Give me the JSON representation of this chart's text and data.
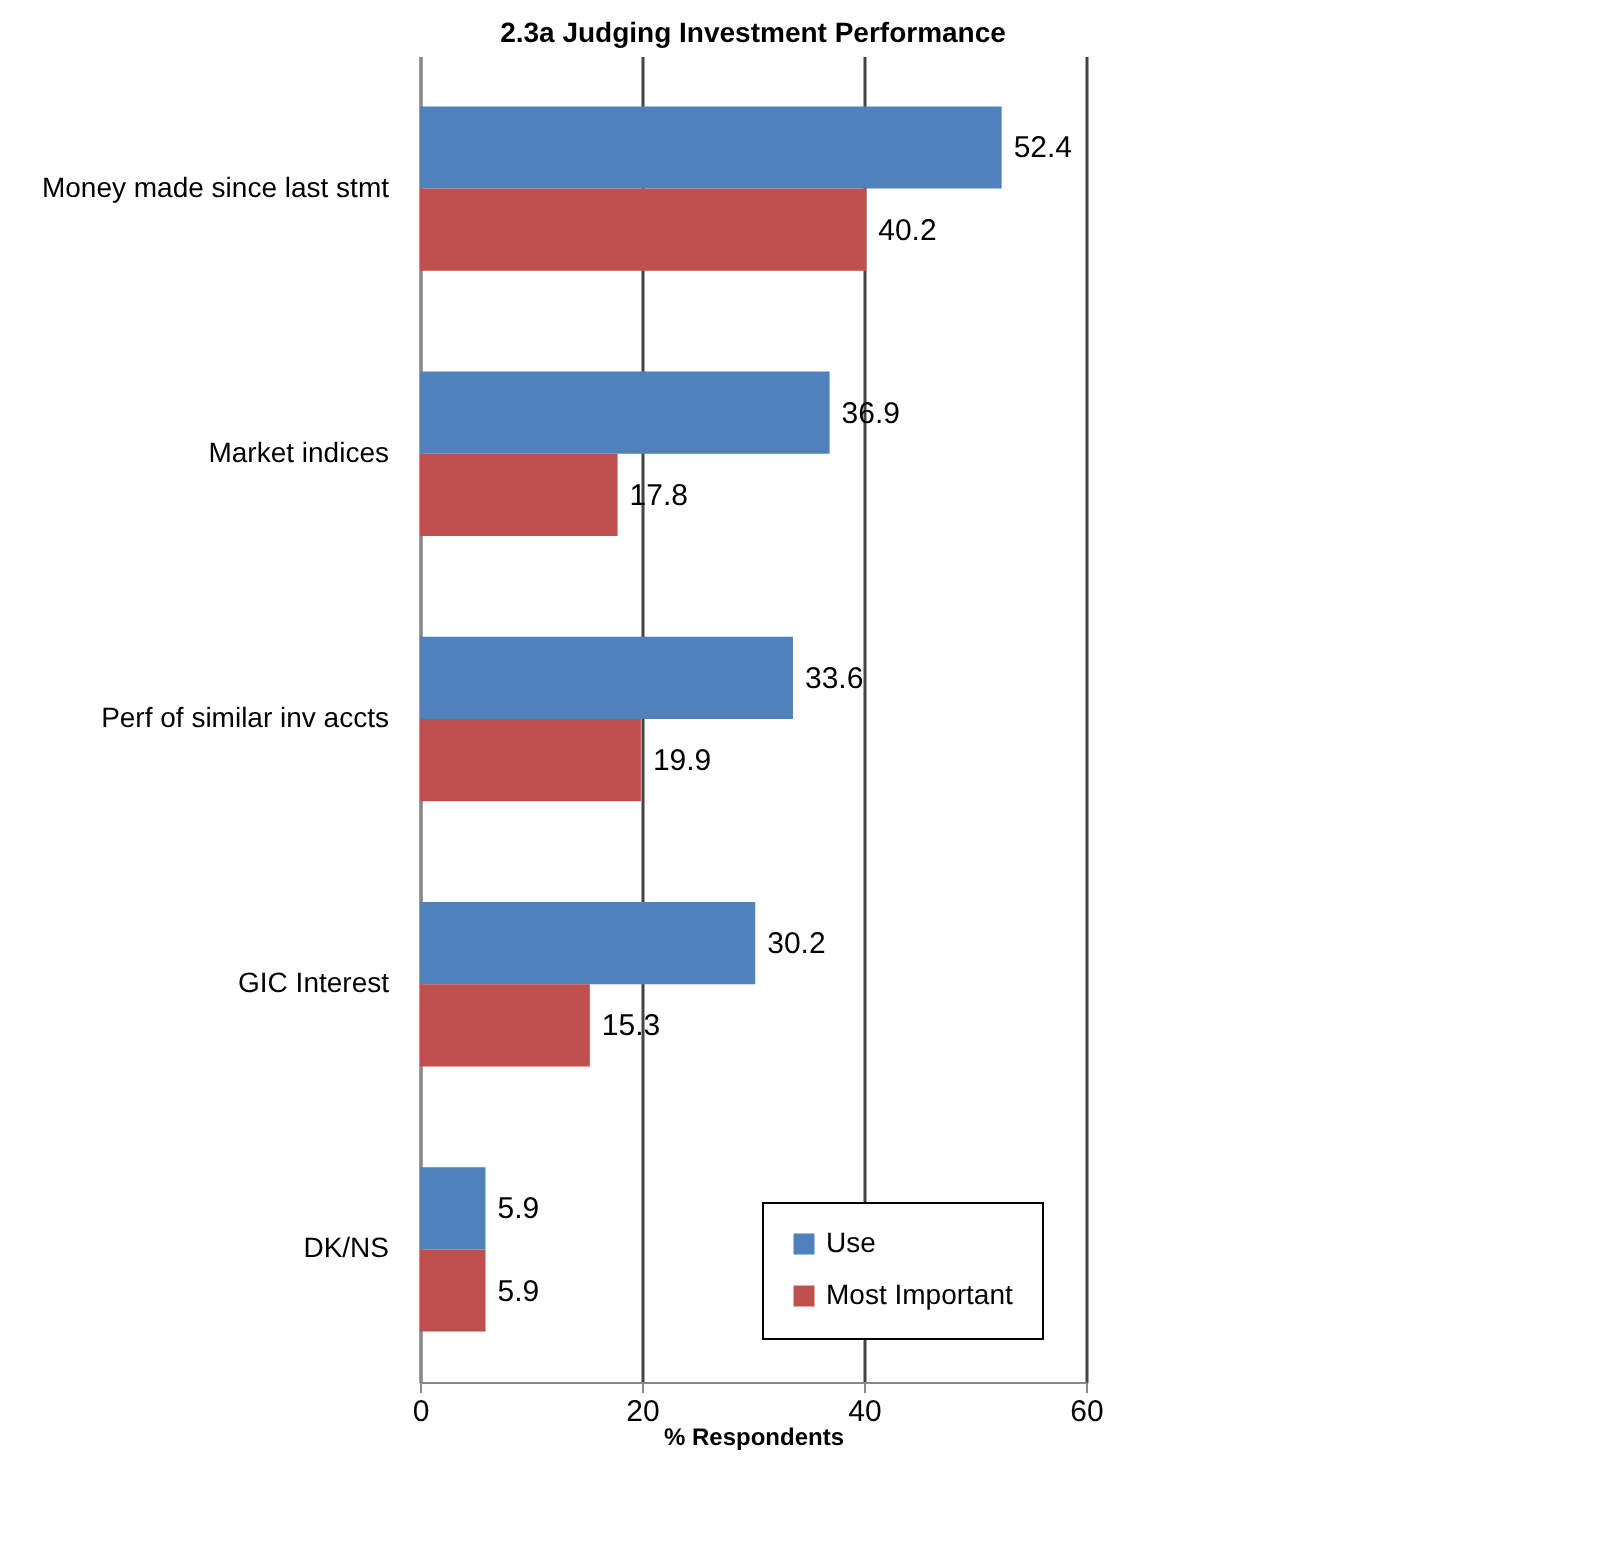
{
  "chart_data": {
    "type": "bar",
    "orientation": "horizontal",
    "title": "2.3a  Judging Investment Performance",
    "xlabel": "% Respondents",
    "categories": [
      "Money made since last stmt",
      "Market indices",
      "Perf of similar inv accts",
      "GIC Interest",
      "DK/NS"
    ],
    "series": [
      {
        "name": "Use",
        "color": "#4f81bd",
        "values": [
          52.4,
          36.9,
          33.6,
          30.2,
          5.9
        ]
      },
      {
        "name": "Most Important",
        "color": "#c0504d",
        "values": [
          40.2,
          17.8,
          19.9,
          15.3,
          5.9
        ]
      }
    ],
    "xlim": [
      0,
      60
    ],
    "xticks": [
      0,
      20,
      40,
      60
    ],
    "grid": "x",
    "legend": "bottom right",
    "data_labels": true
  }
}
